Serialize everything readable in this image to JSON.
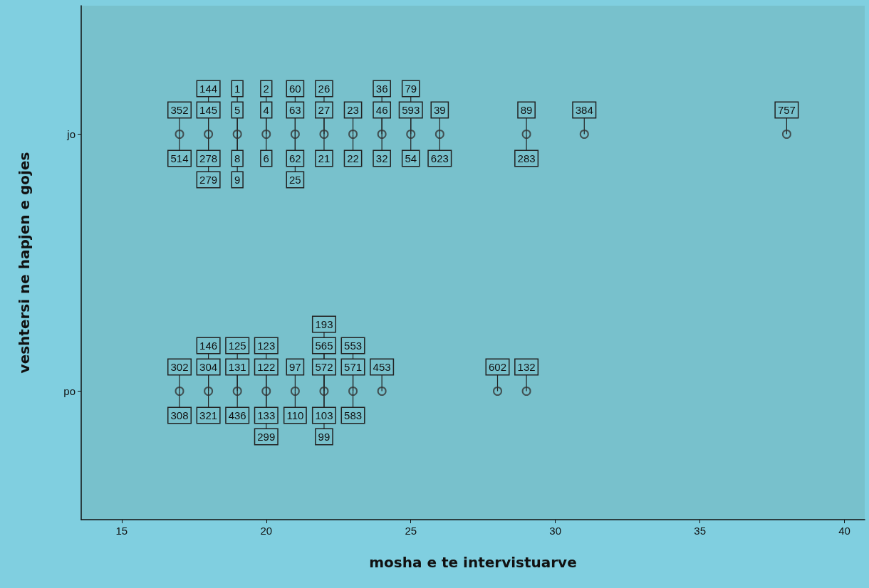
{
  "chart_data": {
    "type": "scatter",
    "orientation": "horizontal",
    "xlabel": "mosha e te intervistuarve",
    "ylabel": "veshtersi ne hapjen e gojes",
    "categories": [
      "jo",
      "po"
    ],
    "series": [
      {
        "color": "#333333",
        "values": [
          17,
          17
        ]
      },
      {
        "color": "#333333",
        "values": [
          18,
          18
        ]
      },
      {
        "color": "#333333",
        "values": [
          19,
          19
        ]
      },
      {
        "color": "#333333",
        "values": [
          20,
          20
        ]
      },
      {
        "color": "#333333",
        "values": [
          21,
          21
        ]
      },
      {
        "color": "#333333",
        "values": [
          22,
          22
        ]
      },
      {
        "color": "#333333",
        "values": [
          23,
          23
        ]
      },
      {
        "color": "#333333",
        "values": [
          24,
          24
        ]
      },
      {
        "color": "#333333",
        "values": [
          25,
          28
        ]
      },
      {
        "color": "#333333",
        "values": [
          26,
          29
        ]
      },
      {
        "color": "#333333",
        "values": [
          29,
          null
        ]
      },
      {
        "color": "#333333",
        "values": [
          31,
          null
        ]
      },
      {
        "color": "#333333",
        "values": [
          38,
          null
        ]
      }
    ],
    "annotations": [
      {
        "text": "352",
        "x": 17,
        "y": "jo"
      },
      {
        "text": "514",
        "x": 17,
        "y": "jo"
      },
      {
        "text": "145",
        "x": 18,
        "y": "jo"
      },
      {
        "text": "278",
        "x": 18,
        "y": "jo"
      },
      {
        "text": "144",
        "x": 18,
        "y": "jo"
      },
      {
        "text": "279",
        "x": 18,
        "y": "jo"
      },
      {
        "text": "5",
        "x": 19,
        "y": "jo"
      },
      {
        "text": "8",
        "x": 19,
        "y": "jo"
      },
      {
        "text": "1",
        "x": 19,
        "y": "jo"
      },
      {
        "text": "9",
        "x": 19,
        "y": "jo"
      },
      {
        "text": "4",
        "x": 20,
        "y": "jo"
      },
      {
        "text": "6",
        "x": 20,
        "y": "jo"
      },
      {
        "text": "2",
        "x": 20,
        "y": "jo"
      },
      {
        "text": "63",
        "x": 21,
        "y": "jo"
      },
      {
        "text": "62",
        "x": 21,
        "y": "jo"
      },
      {
        "text": "60",
        "x": 21,
        "y": "jo"
      },
      {
        "text": "25",
        "x": 21,
        "y": "jo"
      },
      {
        "text": "27",
        "x": 22,
        "y": "jo"
      },
      {
        "text": "21",
        "x": 22,
        "y": "jo"
      },
      {
        "text": "26",
        "x": 22,
        "y": "jo"
      },
      {
        "text": "23",
        "x": 23,
        "y": "jo"
      },
      {
        "text": "22",
        "x": 23,
        "y": "jo"
      },
      {
        "text": "46",
        "x": 24,
        "y": "jo"
      },
      {
        "text": "32",
        "x": 24,
        "y": "jo"
      },
      {
        "text": "36",
        "x": 24,
        "y": "jo"
      },
      {
        "text": "593",
        "x": 25,
        "y": "jo"
      },
      {
        "text": "54",
        "x": 25,
        "y": "jo"
      },
      {
        "text": "79",
        "x": 25,
        "y": "jo"
      },
      {
        "text": "39",
        "x": 26,
        "y": "jo"
      },
      {
        "text": "623",
        "x": 26,
        "y": "jo"
      },
      {
        "text": "89",
        "x": 29,
        "y": "jo"
      },
      {
        "text": "283",
        "x": 29,
        "y": "jo"
      },
      {
        "text": "384",
        "x": 31,
        "y": "jo"
      },
      {
        "text": "757",
        "x": 38,
        "y": "jo"
      },
      {
        "text": "302",
        "x": 17,
        "y": "po"
      },
      {
        "text": "308",
        "x": 17,
        "y": "po"
      },
      {
        "text": "304",
        "x": 18,
        "y": "po"
      },
      {
        "text": "321",
        "x": 18,
        "y": "po"
      },
      {
        "text": "146",
        "x": 18,
        "y": "po"
      },
      {
        "text": "131",
        "x": 19,
        "y": "po"
      },
      {
        "text": "436",
        "x": 19,
        "y": "po"
      },
      {
        "text": "125",
        "x": 19,
        "y": "po"
      },
      {
        "text": "122",
        "x": 20,
        "y": "po"
      },
      {
        "text": "133",
        "x": 20,
        "y": "po"
      },
      {
        "text": "123",
        "x": 20,
        "y": "po"
      },
      {
        "text": "299",
        "x": 20,
        "y": "po"
      },
      {
        "text": "97",
        "x": 21,
        "y": "po"
      },
      {
        "text": "110",
        "x": 21,
        "y": "po"
      },
      {
        "text": "572",
        "x": 22,
        "y": "po"
      },
      {
        "text": "103",
        "x": 22,
        "y": "po"
      },
      {
        "text": "565",
        "x": 22,
        "y": "po"
      },
      {
        "text": "99",
        "x": 22,
        "y": "po"
      },
      {
        "text": "193",
        "x": 22,
        "y": "po"
      },
      {
        "text": "571",
        "x": 23,
        "y": "po"
      },
      {
        "text": "583",
        "x": 23,
        "y": "po"
      },
      {
        "text": "553",
        "x": 23,
        "y": "po"
      },
      {
        "text": "453",
        "x": 24,
        "y": "po"
      },
      {
        "text": "602",
        "x": 28,
        "y": "po"
      },
      {
        "text": "132",
        "x": 29,
        "y": "po"
      }
    ],
    "marker": "circle",
    "grid": false,
    "xlim": [
      13.6,
      40.7
    ],
    "xticks": [
      15,
      20,
      25,
      30,
      35,
      40
    ]
  }
}
